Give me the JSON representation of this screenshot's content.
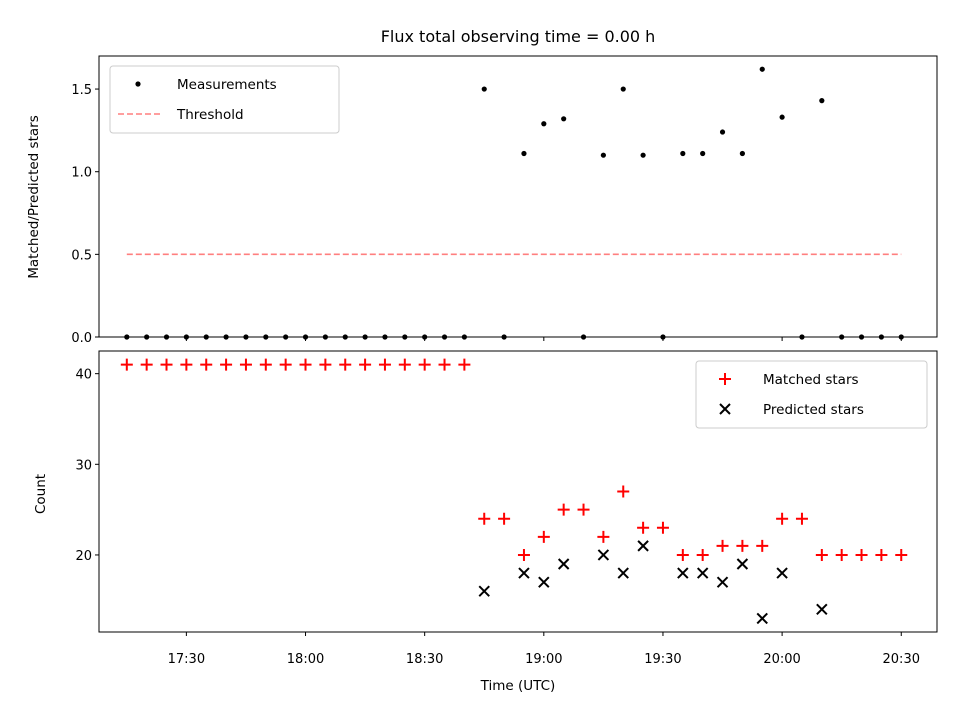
{
  "chart_data": {
    "title": "Flux total observing time = 0.00 h",
    "xlabel": "Time (UTC)",
    "x_ticks": [
      "17:30",
      "18:00",
      "18:30",
      "19:00",
      "19:30",
      "20:00",
      "20:30"
    ],
    "x_range": [
      "17:08",
      "20:39"
    ],
    "panels": [
      {
        "id": "ratio",
        "type": "scatter",
        "ylabel": "Matched/Predicted stars",
        "ylim": [
          0,
          1.7
        ],
        "y_ticks": [
          "0.0",
          "0.5",
          "1.0",
          "1.5"
        ],
        "legend_position": "top-left",
        "series": [
          {
            "name": "Measurements",
            "marker": "dot",
            "color": "#000000",
            "points": [
              {
                "x": "17:15",
                "y": 0
              },
              {
                "x": "17:20",
                "y": 0
              },
              {
                "x": "17:25",
                "y": 0
              },
              {
                "x": "17:30",
                "y": 0
              },
              {
                "x": "17:35",
                "y": 0
              },
              {
                "x": "17:40",
                "y": 0
              },
              {
                "x": "17:45",
                "y": 0
              },
              {
                "x": "17:50",
                "y": 0
              },
              {
                "x": "17:55",
                "y": 0
              },
              {
                "x": "18:00",
                "y": 0
              },
              {
                "x": "18:05",
                "y": 0
              },
              {
                "x": "18:10",
                "y": 0
              },
              {
                "x": "18:15",
                "y": 0
              },
              {
                "x": "18:20",
                "y": 0
              },
              {
                "x": "18:25",
                "y": 0
              },
              {
                "x": "18:30",
                "y": 0
              },
              {
                "x": "18:35",
                "y": 0
              },
              {
                "x": "18:40",
                "y": 0
              },
              {
                "x": "18:45",
                "y": 1.5
              },
              {
                "x": "18:50",
                "y": 0
              },
              {
                "x": "18:55",
                "y": 1.11
              },
              {
                "x": "19:00",
                "y": 1.29
              },
              {
                "x": "19:05",
                "y": 1.32
              },
              {
                "x": "19:10",
                "y": 0
              },
              {
                "x": "19:15",
                "y": 1.1
              },
              {
                "x": "19:20",
                "y": 1.5
              },
              {
                "x": "19:25",
                "y": 1.1
              },
              {
                "x": "19:30",
                "y": 0
              },
              {
                "x": "19:35",
                "y": 1.11
              },
              {
                "x": "19:40",
                "y": 1.11
              },
              {
                "x": "19:45",
                "y": 1.24
              },
              {
                "x": "19:50",
                "y": 1.11
              },
              {
                "x": "19:55",
                "y": 1.62
              },
              {
                "x": "20:00",
                "y": 1.33
              },
              {
                "x": "20:05",
                "y": 0
              },
              {
                "x": "20:10",
                "y": 1.43
              },
              {
                "x": "20:15",
                "y": 0
              },
              {
                "x": "20:20",
                "y": 0
              },
              {
                "x": "20:25",
                "y": 0
              },
              {
                "x": "20:30",
                "y": 0
              }
            ]
          },
          {
            "name": "Threshold",
            "type": "line",
            "style": "dashed",
            "color": "#ff7f7f",
            "points": [
              {
                "x": "17:15",
                "y": 0.5
              },
              {
                "x": "20:30",
                "y": 0.5
              }
            ]
          }
        ]
      },
      {
        "id": "count",
        "type": "scatter",
        "ylabel": "Count",
        "ylim": [
          11.5,
          42.5
        ],
        "y_ticks": [
          "20",
          "30",
          "40"
        ],
        "legend_position": "top-right",
        "series": [
          {
            "name": "Matched stars",
            "marker": "plus",
            "color": "#ff0000",
            "points": [
              {
                "x": "17:15",
                "y": 41
              },
              {
                "x": "17:20",
                "y": 41
              },
              {
                "x": "17:25",
                "y": 41
              },
              {
                "x": "17:30",
                "y": 41
              },
              {
                "x": "17:35",
                "y": 41
              },
              {
                "x": "17:40",
                "y": 41
              },
              {
                "x": "17:45",
                "y": 41
              },
              {
                "x": "17:50",
                "y": 41
              },
              {
                "x": "17:55",
                "y": 41
              },
              {
                "x": "18:00",
                "y": 41
              },
              {
                "x": "18:05",
                "y": 41
              },
              {
                "x": "18:10",
                "y": 41
              },
              {
                "x": "18:15",
                "y": 41
              },
              {
                "x": "18:20",
                "y": 41
              },
              {
                "x": "18:25",
                "y": 41
              },
              {
                "x": "18:30",
                "y": 41
              },
              {
                "x": "18:35",
                "y": 41
              },
              {
                "x": "18:40",
                "y": 41
              },
              {
                "x": "18:45",
                "y": 24
              },
              {
                "x": "18:50",
                "y": 24
              },
              {
                "x": "18:55",
                "y": 20
              },
              {
                "x": "19:00",
                "y": 22
              },
              {
                "x": "19:05",
                "y": 25
              },
              {
                "x": "19:10",
                "y": 25
              },
              {
                "x": "19:15",
                "y": 22
              },
              {
                "x": "19:20",
                "y": 27
              },
              {
                "x": "19:25",
                "y": 23
              },
              {
                "x": "19:30",
                "y": 23
              },
              {
                "x": "19:35",
                "y": 20
              },
              {
                "x": "19:40",
                "y": 20
              },
              {
                "x": "19:45",
                "y": 21
              },
              {
                "x": "19:50",
                "y": 21
              },
              {
                "x": "19:55",
                "y": 21
              },
              {
                "x": "20:00",
                "y": 24
              },
              {
                "x": "20:05",
                "y": 24
              },
              {
                "x": "20:10",
                "y": 20
              },
              {
                "x": "20:15",
                "y": 20
              },
              {
                "x": "20:20",
                "y": 20
              },
              {
                "x": "20:25",
                "y": 20
              },
              {
                "x": "20:30",
                "y": 20
              }
            ]
          },
          {
            "name": "Predicted stars",
            "marker": "x",
            "color": "#000000",
            "points": [
              {
                "x": "18:45",
                "y": 16
              },
              {
                "x": "18:55",
                "y": 18
              },
              {
                "x": "19:00",
                "y": 17
              },
              {
                "x": "19:05",
                "y": 19
              },
              {
                "x": "19:15",
                "y": 20
              },
              {
                "x": "19:20",
                "y": 18
              },
              {
                "x": "19:25",
                "y": 21
              },
              {
                "x": "19:35",
                "y": 18
              },
              {
                "x": "19:40",
                "y": 18
              },
              {
                "x": "19:45",
                "y": 17
              },
              {
                "x": "19:50",
                "y": 19
              },
              {
                "x": "19:55",
                "y": 13
              },
              {
                "x": "20:00",
                "y": 18
              },
              {
                "x": "20:10",
                "y": 14
              }
            ]
          }
        ]
      }
    ]
  }
}
